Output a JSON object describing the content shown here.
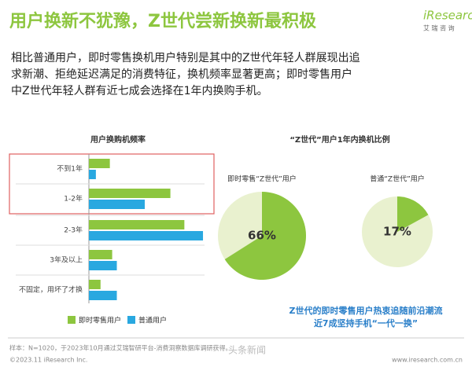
{
  "header": {
    "title": "用户换新不犹豫，Z世代尝新换新最积极",
    "logo": "iResearch",
    "logo_sub": "艾 瑞 咨 询"
  },
  "intro": [
    "相比普通用户，即时零售换机用户特别是其中的Z世代年轻人群展现出追",
    "求新潮、拒绝延迟满足的消费特征，换机频率显著更高；即时零售用户",
    "中Z世代年轻人群有近七成会选择在1年内换购手机。"
  ],
  "chart_data": [
    {
      "type": "barh",
      "title": "用户换购机频率",
      "categories": [
        "不到1年",
        "1-2年",
        "2-3年",
        "3年及以上",
        "不固定，用坏了才换"
      ],
      "series": [
        {
          "name": "即时零售用户",
          "color": "#8dc63f",
          "values": [
            9,
            35,
            41,
            10,
            5
          ]
        },
        {
          "name": "普通用户",
          "color": "#29a8e0",
          "values": [
            3,
            24,
            49,
            12,
            12
          ]
        }
      ],
      "xlim": [
        0,
        50
      ]
    },
    {
      "type": "pie",
      "title": "“Z世代”用户1年内换机比例",
      "pies": [
        {
          "name": "即时零售“Z世代”用户",
          "values": [
            66
          ],
          "value_labels": [
            "66%"
          ],
          "color": "#8dc63f"
        },
        {
          "name": "普通“Z世代”用户",
          "values": [
            17
          ],
          "value_labels": [
            "17%"
          ],
          "color": "#8dc63f"
        }
      ],
      "ylim": [
        0,
        100
      ],
      "caption": [
        "Z世代的即时零售用户热衷追随前沿潮流",
        "近7成坚持手机“一代一换”"
      ]
    }
  ],
  "footer": {
    "note": "样本：N=1020，于2023年10月通过艾瑞智研平台-消费洞察数据库调研获得。",
    "copyright": "©2023.11 iResearch Inc.",
    "url": "www.iresearch.com.cn",
    "watermark": "头条新闻"
  }
}
